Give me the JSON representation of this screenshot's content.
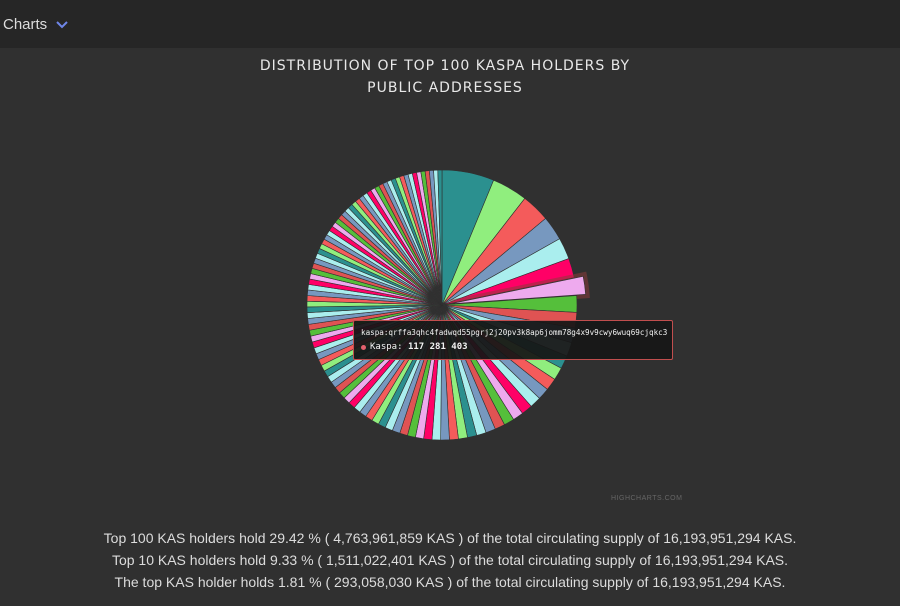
{
  "menu": {
    "label": "Charts",
    "icon": "chevron-down-icon"
  },
  "chart_data": {
    "type": "pie",
    "title": "DISTRIBUTION OF TOP 100 KASPA HOLDERS BY PUBLIC ADDRESSES",
    "series_name": "Kaspa",
    "total_top100": 4763961859,
    "top_value": 293058030,
    "hovered": {
      "address": "kaspa:qrffa3qhc4fadwqd55pgrj2j20pv3k8ap6jomm78g4x9v9cwy6wuq69cjqkc3",
      "series_label": "Kaspa:",
      "value_label": "117 281 403",
      "value": 117281403
    },
    "colors": [
      "#2b908f",
      "#90ee7e",
      "#f45b5b",
      "#7798bf",
      "#aaeeee",
      "#ff0066",
      "#eeaaee",
      "#55bf3b",
      "#df5353",
      "#7798bf",
      "#aaeeee"
    ]
  },
  "credit": "HIGHCHARTS.COM",
  "summary": {
    "line1": "Top 100 KAS holders hold 29.42 % ( 4,763,961,859 KAS ) of the total circulating supply of 16,193,951,294 KAS.",
    "line2": "Top 10 KAS holders hold 9.33 % ( 1,511,022,401 KAS ) of the total circulating supply of 16,193,951,294 KAS.",
    "line3": "The top KAS holder holds 1.81 % ( 293,058,030 KAS ) of the total circulating supply of 16,193,951,294 KAS."
  }
}
